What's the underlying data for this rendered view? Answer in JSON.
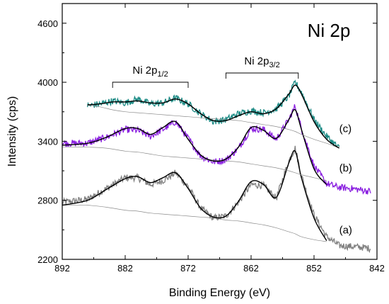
{
  "chart_data": {
    "type": "line",
    "title": "Ni 2p",
    "xlabel": "Binding Energy (eV)",
    "ylabel": "Intensity (cps)",
    "xlim": [
      892,
      842
    ],
    "ylim": [
      2200,
      4800
    ],
    "x_reversed": true,
    "x_ticks": [
      892,
      882,
      872,
      862,
      852,
      842
    ],
    "y_ticks": [
      2200,
      2800,
      3400,
      4000,
      4600
    ],
    "grid": false,
    "legend": "none",
    "annotations": [
      {
        "text": "Ni 2p",
        "sub": "1/2",
        "x_from": 884,
        "x_to": 872
      },
      {
        "text": "Ni 2p",
        "sub": "3/2",
        "x_from": 866,
        "x_to": 854.5
      }
    ],
    "series": [
      {
        "label": "(a)",
        "color": "#808080",
        "label_x": 848,
        "label_y": 2500,
        "x": [
          892,
          888,
          885,
          882,
          880,
          878,
          876,
          874,
          872,
          870,
          868,
          866,
          864,
          862,
          860,
          858,
          856,
          855,
          854,
          852,
          850,
          848,
          846,
          844,
          843
        ],
        "y": [
          2780,
          2810,
          2920,
          3030,
          3030,
          2960,
          3000,
          3080,
          2940,
          2720,
          2620,
          2640,
          2780,
          2960,
          2950,
          2820,
          3200,
          3330,
          3050,
          2650,
          2430,
          2340,
          2330,
          2320,
          2310
        ],
        "fit": [
          2750,
          2800,
          2910,
          3020,
          3040,
          2980,
          3030,
          3080,
          2920,
          2720,
          2630,
          2640,
          2790,
          2990,
          2960,
          2830,
          3180,
          3300,
          3030,
          2620,
          2390,
          null,
          null,
          null,
          null
        ],
        "background": [
          2750,
          2750,
          2730,
          2700,
          2690,
          2670,
          2660,
          2650,
          2640,
          2630,
          2620,
          2600,
          2590,
          2570,
          2550,
          2520,
          2480,
          2460,
          2430,
          2400,
          2380,
          null,
          null,
          null,
          null
        ]
      },
      {
        "label": "(b)",
        "color": "#8a1fe0",
        "label_x": 848,
        "label_y": 3130,
        "x": [
          892,
          888,
          885,
          882,
          880,
          878,
          876,
          874,
          872,
          870,
          868,
          866,
          864,
          862,
          860,
          858,
          856,
          855,
          854,
          852,
          850,
          848,
          846,
          844,
          843
        ],
        "y": [
          3380,
          3380,
          3440,
          3520,
          3510,
          3450,
          3520,
          3600,
          3430,
          3250,
          3190,
          3210,
          3330,
          3530,
          3520,
          3420,
          3620,
          3760,
          3530,
          3150,
          2970,
          2930,
          2920,
          2900,
          2890
        ],
        "fit": [
          3360,
          3380,
          3440,
          3530,
          3530,
          3470,
          3540,
          3600,
          3420,
          3260,
          3200,
          3220,
          3340,
          3540,
          3510,
          3430,
          3620,
          3720,
          3520,
          3120,
          2960,
          null,
          null,
          null,
          null
        ],
        "background": [
          3340,
          3340,
          3330,
          3300,
          3290,
          3270,
          3250,
          3240,
          3230,
          3220,
          3210,
          3200,
          3190,
          3170,
          3150,
          3130,
          3100,
          3080,
          3060,
          3030,
          3000,
          null,
          null,
          null,
          null
        ]
      },
      {
        "label": "(c)",
        "color": "#1a8a84",
        "label_x": 848,
        "label_y": 3530,
        "x": [
          888,
          886,
          884,
          882,
          880,
          878,
          876,
          874,
          872,
          870,
          868,
          866,
          864,
          862,
          860,
          858,
          856,
          855,
          854,
          852,
          850,
          848
        ],
        "y": [
          3760,
          3780,
          3810,
          3790,
          3830,
          3780,
          3790,
          3840,
          3780,
          3680,
          3600,
          3620,
          3680,
          3710,
          3690,
          3730,
          3860,
          4000,
          3900,
          3620,
          3450,
          3330
        ],
        "fit": [
          3770,
          3780,
          3800,
          3800,
          3810,
          3790,
          3790,
          3830,
          3780,
          3680,
          3610,
          3610,
          3660,
          3700,
          3680,
          3730,
          3880,
          3970,
          3880,
          3600,
          3420,
          3330
        ],
        "background": [
          3770,
          3750,
          3720,
          3700,
          3690,
          3680,
          3670,
          3660,
          3650,
          3640,
          3630,
          3620,
          3610,
          3590,
          3570,
          3550,
          3520,
          3500,
          3470,
          3420,
          3380,
          3330
        ]
      }
    ]
  }
}
